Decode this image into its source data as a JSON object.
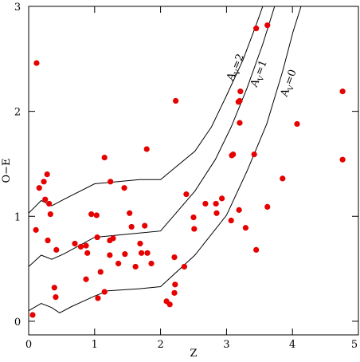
{
  "chart_data": {
    "type": "scatter",
    "x_label": "Z",
    "y_label": "O−E",
    "xlim": [
      0,
      5
    ],
    "ylim": [
      -0.13,
      3
    ],
    "xticks": [
      0,
      1,
      2,
      3,
      4,
      5
    ],
    "yticks": [
      0,
      1,
      2,
      3
    ],
    "point_color": "#e60000",
    "x": [
      0.06,
      0.12,
      0.11,
      0.16,
      0.23,
      0.28,
      0.25,
      0.31,
      0.33,
      0.29,
      0.39,
      0.41,
      0.42,
      0.7,
      0.79,
      0.87,
      0.89,
      0.87,
      0.95,
      1.03,
      1.04,
      1.05,
      1.09,
      1.15,
      1.15,
      1.23,
      1.24,
      1.28,
      1.23,
      1.36,
      1.45,
      1.46,
      1.53,
      1.56,
      1.62,
      1.69,
      1.71,
      1.76,
      1.79,
      1.8,
      1.86,
      2.09,
      2.14,
      2.21,
      2.22,
      2.21,
      2.23,
      2.39,
      2.36,
      2.5,
      2.51,
      2.68,
      2.85,
      2.93,
      2.84,
      3.08,
      3.1,
      3.07,
      3.19,
      3.18,
      3.2,
      3.21,
      3.2,
      3.29,
      3.42,
      3.45,
      3.45,
      3.62,
      3.62,
      3.85,
      4.07,
      4.76,
      4.76
    ],
    "values": [
      0.06,
      2.46,
      0.87,
      1.27,
      1.33,
      1.4,
      1.16,
      1.12,
      1.02,
      0.77,
      0.32,
      0.23,
      0.68,
      0.74,
      0.71,
      0.72,
      0.65,
      0.4,
      1.02,
      1.01,
      0.8,
      0.22,
      0.47,
      0.28,
      1.56,
      0.77,
      1.33,
      0.79,
      0.63,
      0.55,
      1.27,
      0.64,
      1.03,
      0.9,
      0.52,
      0.74,
      0.65,
      0.91,
      1.64,
      0.65,
      0.55,
      0.19,
      0.16,
      0.61,
      0.35,
      0.27,
      2.1,
      1.21,
      0.52,
      0.99,
      0.88,
      1.12,
      1.03,
      1.17,
      1.12,
      1.58,
      1.59,
      0.96,
      1.06,
      2.09,
      2.1,
      2.19,
      1.89,
      0.89,
      1.59,
      2.79,
      0.68,
      2.82,
      1.09,
      1.36,
      1.88,
      2.19,
      1.54
    ],
    "curves": [
      {
        "label": {
          "base": "A",
          "sub": "V",
          "rest": "=0"
        },
        "color": "#000000",
        "x": [
          0,
          0.19,
          0.35,
          0.47,
          0.65,
          1.0,
          1.2,
          1.68,
          2.0,
          2.52,
          3.0,
          3.31,
          3.61,
          3.85,
          4.01,
          4.13
        ],
        "values": [
          0.1,
          0.17,
          0.13,
          0.08,
          0.14,
          0.24,
          0.29,
          0.31,
          0.33,
          0.63,
          1.01,
          1.43,
          1.88,
          2.38,
          2.76,
          3.0
        ]
      },
      {
        "label": {
          "base": "A",
          "sub": "V",
          "rest": "=1"
        },
        "color": "#000000",
        "x": [
          0,
          0.19,
          0.35,
          0.53,
          1.0,
          1.68,
          2.0,
          2.52,
          2.83,
          3.07,
          3.31,
          3.55,
          3.73
        ],
        "values": [
          0.52,
          0.63,
          0.59,
          0.64,
          0.8,
          0.84,
          0.86,
          1.24,
          1.54,
          1.85,
          2.22,
          2.64,
          3.0
        ]
      },
      {
        "label": {
          "base": "A",
          "sub": "V",
          "rest": "=2"
        },
        "color": "#000000",
        "x": [
          0,
          0.19,
          0.35,
          0.53,
          1.0,
          1.68,
          2.0,
          2.52,
          2.77,
          3.0,
          3.25,
          3.43,
          3.55
        ],
        "values": [
          1.03,
          1.15,
          1.1,
          1.16,
          1.31,
          1.35,
          1.35,
          1.62,
          1.85,
          2.15,
          2.49,
          2.79,
          3.0
        ]
      }
    ]
  }
}
